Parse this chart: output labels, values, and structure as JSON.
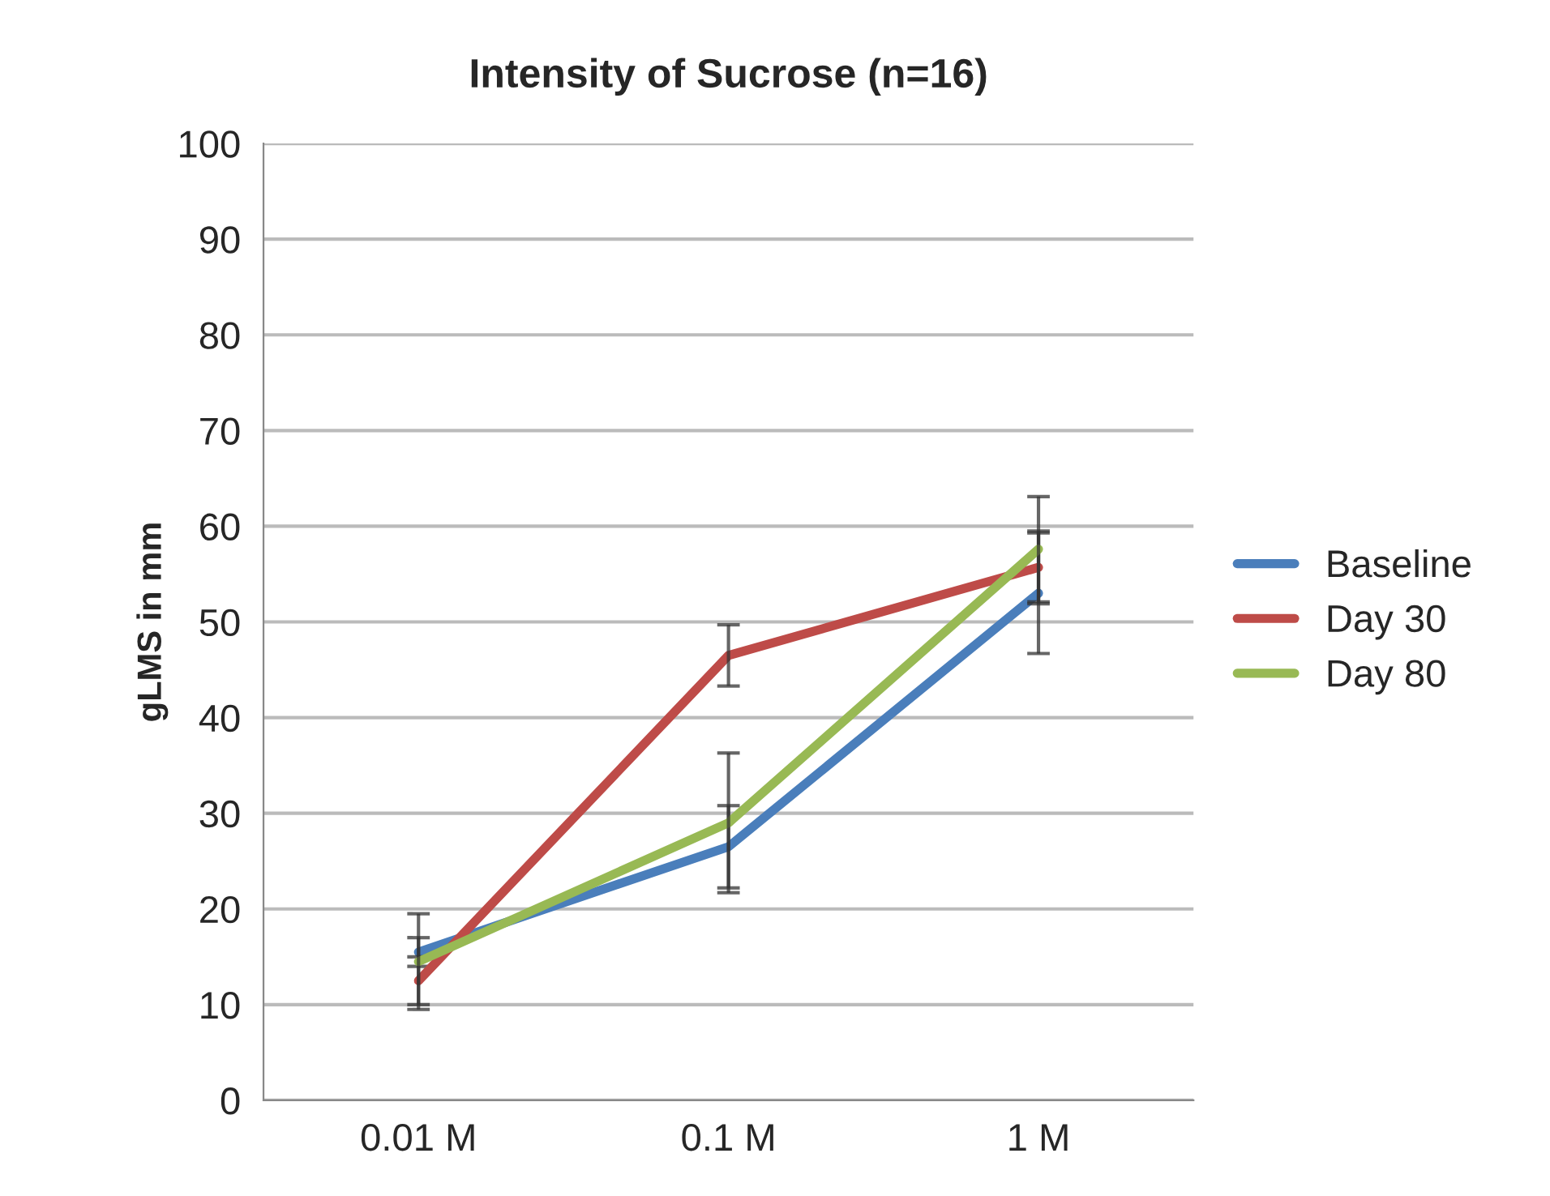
{
  "chart_data": {
    "type": "line",
    "title": "Intensity of Sucrose (n=16)",
    "ylabel": "gLMS in mm",
    "categories": [
      "0.01 M",
      "0.1 M",
      "1 M"
    ],
    "series": [
      {
        "name": "Baseline",
        "color": "#4a7ebb",
        "values": [
          15.5,
          26.5,
          53
        ],
        "errors": [
          1.5,
          4.3,
          6.3
        ]
      },
      {
        "name": "Day 30",
        "color": "#be4b48",
        "values": [
          12.5,
          46.5,
          55.7
        ],
        "errors": [
          2.5,
          3.2,
          3.8
        ]
      },
      {
        "name": "Day 80",
        "color": "#98b954",
        "values": [
          14.5,
          29,
          57.6
        ],
        "errors": [
          5,
          7.3,
          5.5
        ]
      }
    ],
    "ylim": [
      0,
      100
    ],
    "yticks": [
      0,
      10,
      20,
      30,
      40,
      50,
      60,
      70,
      80,
      90,
      100
    ],
    "grid": "y",
    "legend": "right",
    "marker": "none",
    "line_style": "solid"
  }
}
